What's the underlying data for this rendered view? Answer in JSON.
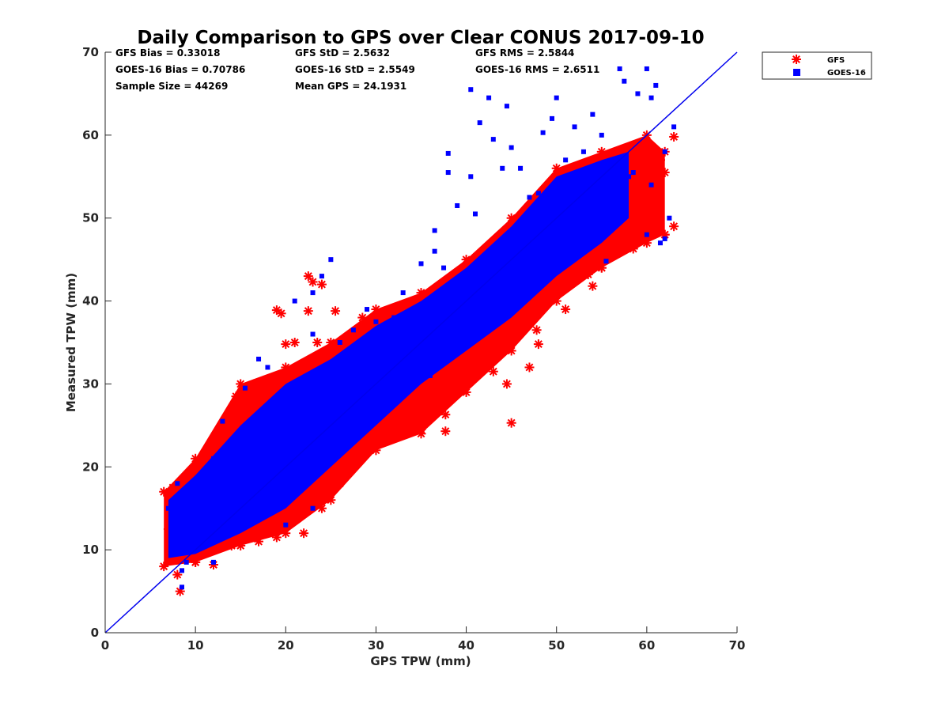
{
  "chart_data": {
    "type": "scatter",
    "title": "Daily Comparison to GPS over Clear CONUS 2017-09-10",
    "xlabel": "GPS TPW (mm)",
    "ylabel": "Measured TPW (mm)",
    "xlim": [
      0,
      70
    ],
    "ylim": [
      0,
      70
    ],
    "xticks": [
      "0",
      "10",
      "20",
      "30",
      "40",
      "50",
      "60",
      "70"
    ],
    "yticks": [
      "0",
      "10",
      "20",
      "30",
      "40",
      "50",
      "60",
      "70"
    ],
    "grid": false,
    "legend_position": "outside-top-right",
    "stats": [
      [
        "GFS Bias = 0.33018",
        "GFS StD = 2.5632",
        "GFS RMS = 2.5844"
      ],
      [
        "GOES-16 Bias = 0.70786",
        "GOES-16 StD = 2.5549",
        "GOES-16 RMS = 2.6511"
      ],
      [
        "Sample Size = 44269",
        "Mean GPS = 24.1931"
      ]
    ],
    "reference_line": {
      "name": "1:1",
      "x": [
        0,
        70
      ],
      "y": [
        0,
        70
      ],
      "color": "#0000ee"
    },
    "series": [
      {
        "name": "GFS",
        "marker": "asterisk",
        "color": "#ff0000",
        "dense_envelope": [
          [
            6.5,
            8,
            17
          ],
          [
            10,
            8.5,
            21
          ],
          [
            15,
            10.5,
            30
          ],
          [
            20,
            12,
            32
          ],
          [
            25,
            16,
            35
          ],
          [
            30,
            22,
            39
          ],
          [
            35,
            24,
            41
          ],
          [
            40,
            29,
            45
          ],
          [
            45,
            34,
            50
          ],
          [
            50,
            40,
            56
          ],
          [
            55,
            44,
            58
          ],
          [
            60,
            47,
            60
          ],
          [
            62,
            48,
            58
          ]
        ],
        "points": [
          [
            45,
            25.3
          ],
          [
            47,
            32
          ],
          [
            44.5,
            30
          ],
          [
            43,
            31.5
          ],
          [
            37.7,
            26.3
          ],
          [
            36.6,
            26.8
          ],
          [
            37.7,
            24.3
          ],
          [
            48,
            34.8
          ],
          [
            47.8,
            36.5
          ],
          [
            43.5,
            35.3
          ],
          [
            46.5,
            38
          ],
          [
            51,
            39
          ],
          [
            49,
            40.5
          ],
          [
            54,
            41.8
          ],
          [
            53.5,
            43.2
          ],
          [
            55,
            44
          ],
          [
            58.5,
            46.3
          ],
          [
            59,
            48.5
          ],
          [
            62,
            48
          ],
          [
            63,
            49
          ],
          [
            60,
            50.2
          ],
          [
            59.5,
            52.8
          ],
          [
            62,
            55.5
          ],
          [
            63,
            59.8
          ],
          [
            60,
            58
          ],
          [
            61.5,
            57
          ],
          [
            51,
            52
          ],
          [
            56,
            48.8
          ],
          [
            22.5,
            38.8
          ],
          [
            25.5,
            38.8
          ],
          [
            23.5,
            35
          ],
          [
            22.5,
            43
          ],
          [
            24,
            42
          ],
          [
            20,
            34.8
          ],
          [
            21,
            35
          ],
          [
            19,
            38.9
          ],
          [
            23,
            42.3
          ],
          [
            19.5,
            38.5
          ],
          [
            8.3,
            5
          ],
          [
            8,
            7
          ],
          [
            7,
            12.5
          ],
          [
            7.5,
            17.5
          ],
          [
            14.5,
            28.5
          ],
          [
            15.5,
            29
          ],
          [
            16.5,
            30
          ],
          [
            13.5,
            24
          ],
          [
            18,
            29.5
          ],
          [
            20.5,
            30
          ],
          [
            12,
            11
          ],
          [
            14,
            10.5
          ],
          [
            17,
            11
          ],
          [
            19,
            11.5
          ],
          [
            22,
            12
          ],
          [
            24,
            15
          ],
          [
            26,
            18
          ],
          [
            28,
            22
          ],
          [
            30,
            23.5
          ],
          [
            32,
            27
          ],
          [
            33.5,
            39.5
          ],
          [
            31,
            38.5
          ],
          [
            41,
            31
          ],
          [
            39,
            29
          ],
          [
            35,
            24.5
          ],
          [
            10,
            8.5
          ],
          [
            12,
            8.2
          ],
          [
            9.5,
            10.5
          ],
          [
            28.5,
            38
          ],
          [
            40,
            37.5
          ],
          [
            42,
            36
          ],
          [
            52,
            45
          ],
          [
            48,
            42
          ]
        ]
      },
      {
        "name": "GOES-16",
        "marker": "square",
        "color": "#0000ff",
        "dense_envelope": [
          [
            7,
            9,
            16
          ],
          [
            10,
            9.5,
            19
          ],
          [
            15,
            12,
            25
          ],
          [
            20,
            15,
            30
          ],
          [
            25,
            20,
            33
          ],
          [
            30,
            25,
            37
          ],
          [
            35,
            30,
            40
          ],
          [
            40,
            34,
            44
          ],
          [
            45,
            38,
            49
          ],
          [
            50,
            43,
            55
          ],
          [
            55,
            47,
            57
          ],
          [
            58,
            50,
            58
          ]
        ],
        "points": [
          [
            57,
            68
          ],
          [
            60,
            68
          ],
          [
            61,
            66
          ],
          [
            57.5,
            66.5
          ],
          [
            60.5,
            64.5
          ],
          [
            63,
            61
          ],
          [
            62,
            58
          ],
          [
            59,
            65
          ],
          [
            50,
            64.5
          ],
          [
            49.5,
            62
          ],
          [
            44.5,
            63.5
          ],
          [
            40.5,
            65.5
          ],
          [
            42.5,
            64.5
          ],
          [
            38,
            57.8
          ],
          [
            43,
            59.5
          ],
          [
            41.5,
            61.5
          ],
          [
            45,
            58.5
          ],
          [
            48.5,
            60.3
          ],
          [
            52,
            61
          ],
          [
            54,
            62.5
          ],
          [
            56,
            56.5
          ],
          [
            58.5,
            55.5
          ],
          [
            60.5,
            54
          ],
          [
            62.5,
            50
          ],
          [
            62,
            47.5
          ],
          [
            61.5,
            47
          ],
          [
            60,
            48
          ],
          [
            55.5,
            44.8
          ],
          [
            57,
            50
          ],
          [
            53.5,
            52
          ],
          [
            36.5,
            46
          ],
          [
            37.5,
            44
          ],
          [
            37,
            40
          ],
          [
            41,
            50.5
          ],
          [
            44,
            56
          ],
          [
            47,
            52.5
          ],
          [
            39,
            51.5
          ],
          [
            36.5,
            48.5
          ],
          [
            33,
            41
          ],
          [
            35,
            44.5
          ],
          [
            40.5,
            55
          ],
          [
            38,
            55.5
          ],
          [
            25,
            45
          ],
          [
            24,
            43
          ],
          [
            23,
            41
          ],
          [
            21,
            40
          ],
          [
            23,
            36
          ],
          [
            26,
            35
          ],
          [
            27.5,
            36.5
          ],
          [
            29,
            39
          ],
          [
            30,
            37.5
          ],
          [
            32,
            38
          ],
          [
            26.5,
            32.5
          ],
          [
            18,
            32
          ],
          [
            17,
            33
          ],
          [
            15.5,
            29.5
          ],
          [
            13,
            25.5
          ],
          [
            12,
            21
          ],
          [
            9,
            16
          ],
          [
            7,
            15
          ],
          [
            8,
            18
          ],
          [
            8.5,
            5.5
          ],
          [
            8.5,
            7.5
          ],
          [
            9,
            8.5
          ],
          [
            12,
            8.5
          ],
          [
            14,
            14
          ],
          [
            16,
            14
          ],
          [
            18,
            15
          ],
          [
            20,
            13
          ],
          [
            23,
            15
          ],
          [
            26,
            22
          ],
          [
            28,
            24
          ],
          [
            30,
            26
          ],
          [
            32,
            28
          ],
          [
            34,
            32
          ],
          [
            36,
            31
          ],
          [
            38,
            34
          ],
          [
            42,
            38
          ],
          [
            44,
            39
          ],
          [
            46,
            42
          ],
          [
            48,
            45
          ],
          [
            50,
            47
          ],
          [
            52,
            49
          ],
          [
            54,
            51
          ],
          [
            56,
            53
          ],
          [
            58,
            55
          ],
          [
            51,
            57
          ],
          [
            53,
            58
          ],
          [
            55,
            60
          ],
          [
            46,
            56
          ],
          [
            48,
            53
          ]
        ]
      }
    ]
  }
}
